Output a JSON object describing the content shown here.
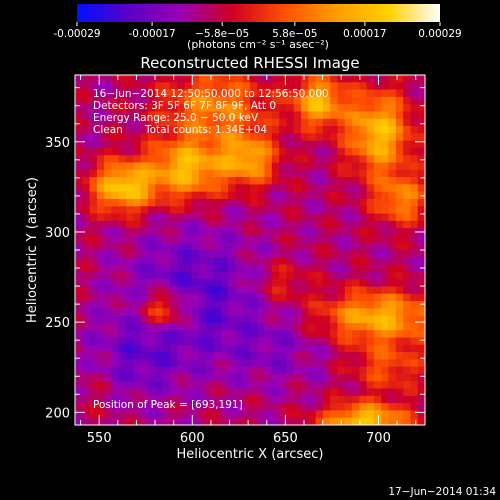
{
  "chart_data": {
    "type": "heatmap",
    "title": "Reconstructed RHESSI Image",
    "xlabel": "Heliocentric X (arcsec)",
    "ylabel": "Heliocentric Y (arcsec)",
    "xlim": [
      537,
      725
    ],
    "ylim": [
      193,
      387
    ],
    "xticks": [
      550,
      600,
      650,
      700
    ],
    "yticks": [
      200,
      250,
      300,
      350
    ],
    "colorbar": {
      "ticks": [
        "-0.00029",
        "-0.00017",
        "−5.8e−05",
        "5.8e−05",
        "0.00017",
        "0.00029"
      ],
      "tick_values": [
        -0.00029,
        -0.00017,
        -5.8e-05,
        5.8e-05,
        0.00017,
        0.00029
      ],
      "units_label": "(photons cm⁻² s⁻¹ asec⁻²)",
      "colors": [
        "#0010ff",
        "#5a00c8",
        "#9a00b4",
        "#d00020",
        "#ff5000",
        "#ff9c00",
        "#ffd000",
        "#ffffff"
      ]
    },
    "annotations": {
      "time": "16−Jun−2014 12:50:50.000 to 12:56:50.000",
      "detectors": "Detectors: 3F 5F 6F 7F 8F 9F, Att 0",
      "energy": "Energy Range: 25.0 − 50.0 keV",
      "method": "Clean",
      "counts": "Total counts: 1.34E+04",
      "peak": "Position of Peak = [693,191]"
    },
    "sources": [
      {
        "x": 563,
        "y": 325,
        "amp": 0.00028,
        "sx": 12,
        "sy": 10
      },
      {
        "x": 597,
        "y": 335,
        "amp": 0.00025,
        "sx": 14,
        "sy": 12
      },
      {
        "x": 630,
        "y": 340,
        "amp": 0.00022,
        "sx": 11,
        "sy": 10
      },
      {
        "x": 612,
        "y": 370,
        "amp": 0.00018,
        "sx": 20,
        "sy": 14
      },
      {
        "x": 668,
        "y": 372,
        "amp": 0.00024,
        "sx": 10,
        "sy": 10
      },
      {
        "x": 700,
        "y": 355,
        "amp": 0.00026,
        "sx": 12,
        "sy": 16
      },
      {
        "x": 712,
        "y": 318,
        "amp": 0.00018,
        "sx": 10,
        "sy": 10
      },
      {
        "x": 585,
        "y": 257,
        "amp": 0.0002,
        "sx": 10,
        "sy": 8
      },
      {
        "x": 648,
        "y": 272,
        "amp": 8e-05,
        "sx": 10,
        "sy": 8
      },
      {
        "x": 700,
        "y": 253,
        "amp": 0.00024,
        "sx": 22,
        "sy": 10
      },
      {
        "x": 705,
        "y": 225,
        "amp": 0.00012,
        "sx": 14,
        "sy": 10
      },
      {
        "x": 693,
        "y": 195,
        "amp": 0.00028,
        "sx": 16,
        "sy": 7
      },
      {
        "x": 548,
        "y": 210,
        "amp": 3e-05,
        "sx": 10,
        "sy": 10
      },
      {
        "x": 600,
        "y": 265,
        "amp": -0.00012,
        "sx": 25,
        "sy": 25
      },
      {
        "x": 570,
        "y": 230,
        "amp": -8e-05,
        "sx": 18,
        "sy": 18
      },
      {
        "x": 645,
        "y": 235,
        "amp": -6e-05,
        "sx": 20,
        "sy": 15
      }
    ]
  },
  "footer": {
    "timestamp": "17−Jun−2014 01:34"
  }
}
